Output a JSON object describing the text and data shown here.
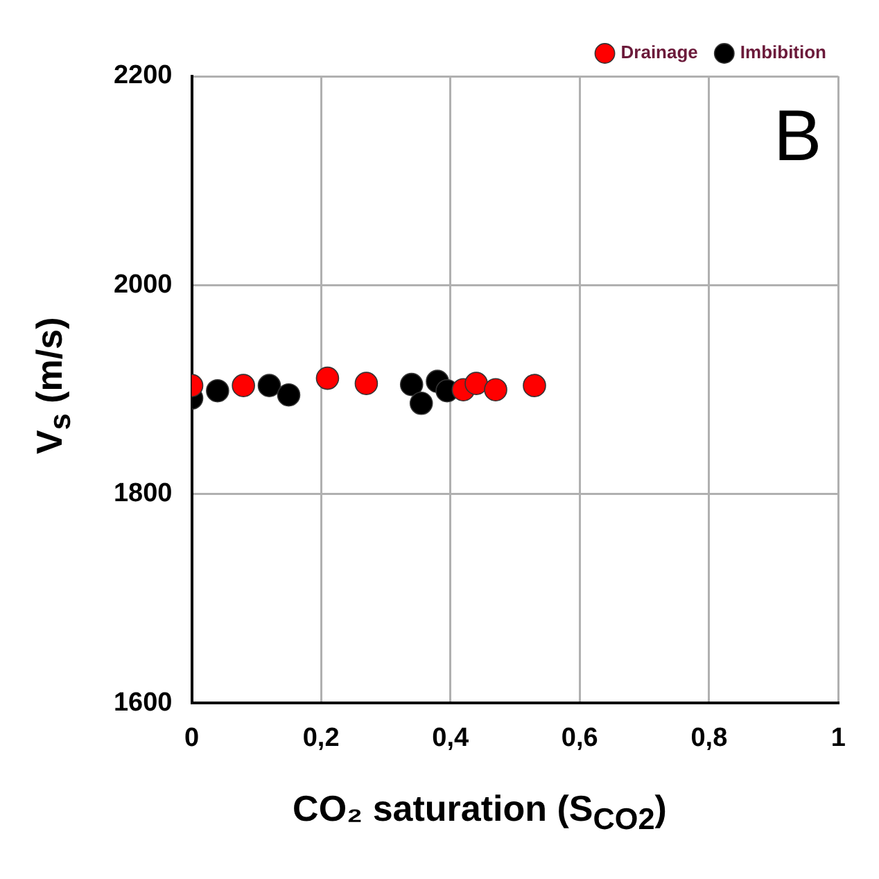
{
  "chart_data": {
    "type": "scatter",
    "xlabel": "CO₂ saturation (S$_{CO2}$)",
    "ylabel": "V$_{s}$ (m/s)",
    "annotations": [
      "B"
    ],
    "xlim": [
      0,
      1
    ],
    "xticks": [
      0,
      {
        "value": 0.2,
        "label": "0,2"
      },
      {
        "value": 0.4,
        "label": "0,4"
      },
      {
        "value": 0.6,
        "label": "0,6"
      },
      {
        "value": 0.8,
        "label": "0,8"
      },
      1
    ],
    "ylim": [
      1600,
      2200
    ],
    "yticks": [
      1600,
      1800,
      2000,
      2200
    ],
    "grid": true,
    "legend": "top right",
    "marker": "circle",
    "series": [
      {
        "name": "Drainage",
        "color": "#ff0000",
        "x": [
          0,
          0.08,
          0.21,
          0.27,
          0.41,
          0.42,
          0.44,
          0.46,
          0.47,
          0.53
        ],
        "values": [
          1904,
          1904,
          1911,
          1906,
          null,
          1900,
          1906,
          null,
          1900,
          1904
        ]
      },
      {
        "name": "Imbibition",
        "color": "#000000",
        "x": [
          0,
          0.04,
          0.12,
          0.15,
          0.34,
          0.355,
          0.38,
          0.395
        ],
        "values": [
          1892,
          1899,
          1904,
          1895,
          1905,
          1887,
          1908,
          1899
        ]
      }
    ]
  }
}
